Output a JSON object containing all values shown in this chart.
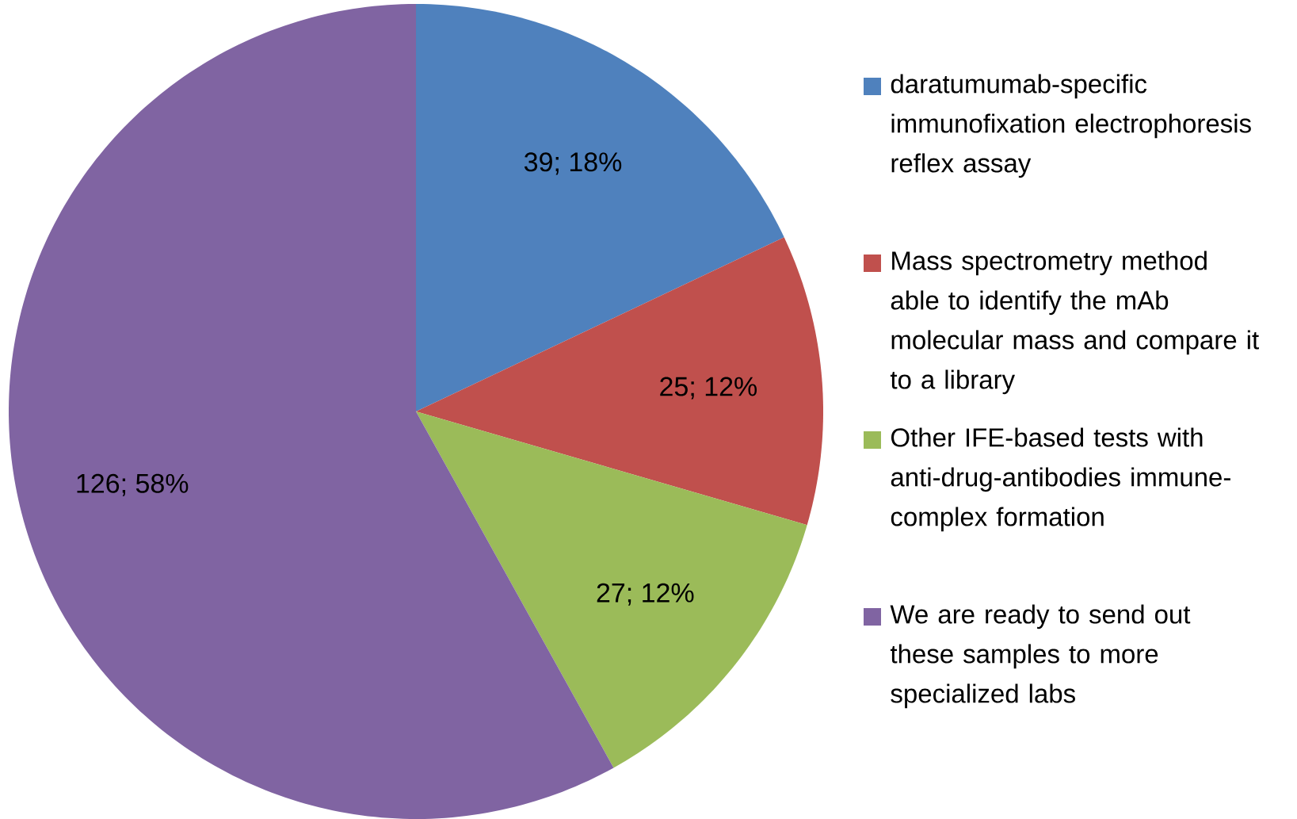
{
  "chart_data": {
    "type": "pie",
    "categories": [
      "daratumumab-specific immunofixation electrophoresis reflex assay",
      "Mass spectrometry method able to identify the mAb molecular mass and compare it to a library",
      "Other IFE-based tests with anti-drug-antibodies immune-complex formation",
      "We are ready to send out these samples to more specialized labs"
    ],
    "values": [
      39,
      25,
      27,
      126
    ],
    "value_labels": [
      "39; 18%",
      "25; 12%",
      "27; 12%",
      "126; 58%"
    ],
    "colors": [
      "#4f81bd",
      "#c0504d",
      "#9bbb59",
      "#8064a2"
    ],
    "legend": "right"
  }
}
